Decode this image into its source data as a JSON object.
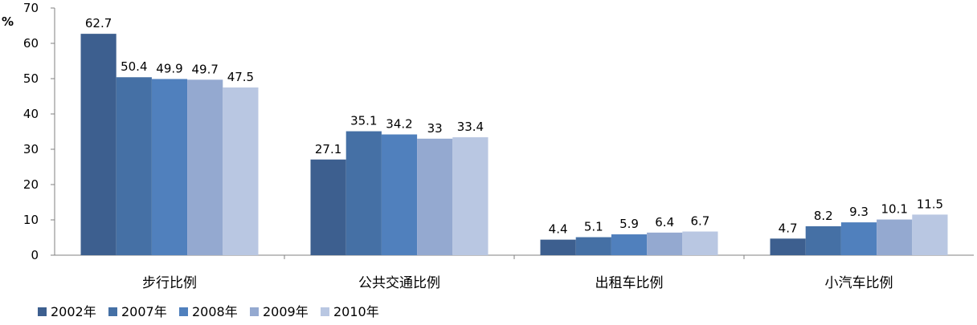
{
  "chart_data": {
    "type": "bar",
    "unit_label": "%",
    "categories": [
      "步行比例",
      "公共交通比例",
      "出租车比例",
      "小汽车比例"
    ],
    "series": [
      {
        "name": "2002年",
        "color": "#3d5f8f",
        "values": [
          62.7,
          27.1,
          4.4,
          4.7
        ]
      },
      {
        "name": "2007年",
        "color": "#4570a5",
        "values": [
          50.4,
          35.1,
          5.1,
          8.2
        ]
      },
      {
        "name": "2008年",
        "color": "#5080bd",
        "values": [
          49.9,
          34.2,
          5.9,
          9.3
        ]
      },
      {
        "name": "2009年",
        "color": "#94a9d0",
        "values": [
          49.7,
          33,
          6.4,
          10.1
        ]
      },
      {
        "name": "2010年",
        "color": "#b9c7e2",
        "values": [
          47.5,
          33.4,
          6.7,
          11.5
        ]
      }
    ],
    "ylim": [
      0,
      70
    ],
    "yticks": [
      0,
      10,
      20,
      30,
      40,
      50,
      60,
      70
    ],
    "grid": false,
    "legend_position": "bottom-left"
  }
}
